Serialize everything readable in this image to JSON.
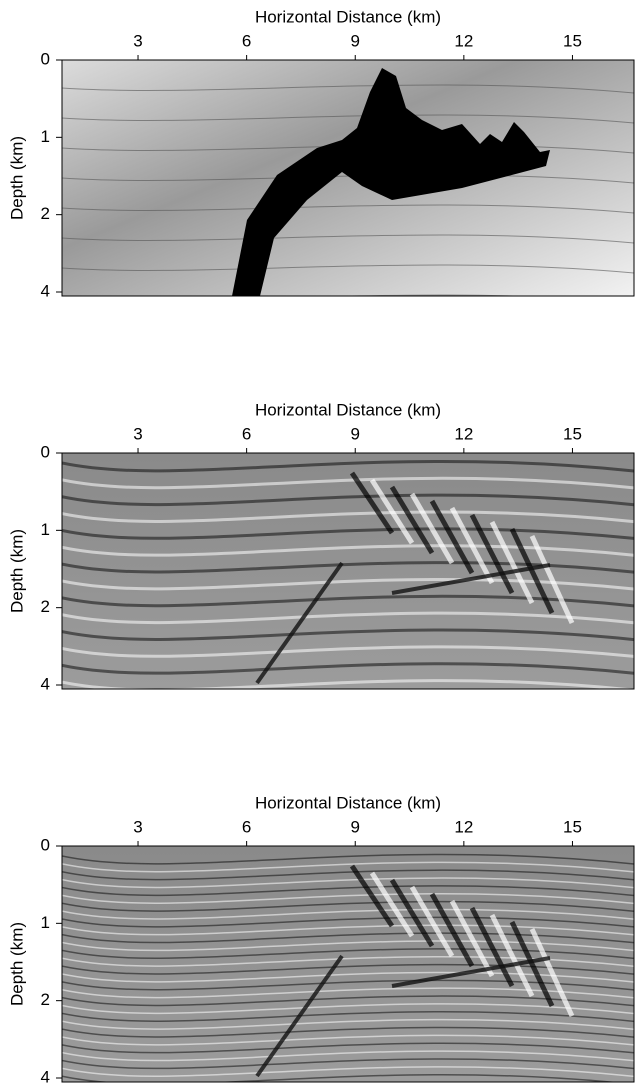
{
  "chart_data": [
    {
      "type": "image",
      "x_label": "Horizontal Distance (km)",
      "y_label": "Depth (km)",
      "xlim": [
        0.9,
        16.7
      ],
      "xticks": [
        3,
        6,
        9,
        12,
        15
      ],
      "yticks": [
        0,
        1,
        2,
        4
      ]
    },
    {
      "type": "image",
      "x_label": "Horizontal Distance (km)",
      "y_label": "Depth (km)",
      "xlim": [
        0.9,
        16.7
      ],
      "xticks": [
        3,
        6,
        9,
        12,
        15
      ],
      "yticks": [
        0,
        1,
        2,
        4
      ]
    },
    {
      "type": "image",
      "x_label": "Horizontal Distance (km)",
      "y_label": "Depth (km)",
      "xlim": [
        0.9,
        16.7
      ],
      "xticks": [
        3,
        6,
        9,
        12,
        15
      ],
      "yticks": [
        0,
        1,
        2,
        4
      ]
    }
  ]
}
